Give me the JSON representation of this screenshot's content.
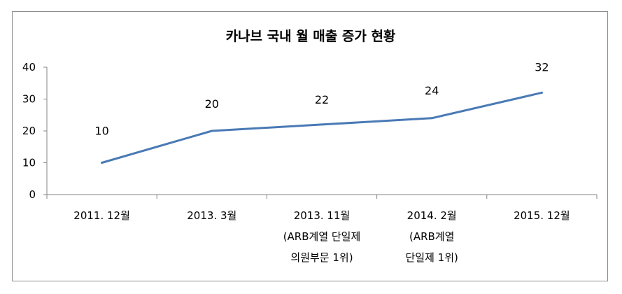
{
  "chart_data": {
    "type": "line",
    "title": "카나브 국내 월 매출 증가 현황",
    "xlabel": "",
    "ylabel": "",
    "ylim": [
      0,
      40
    ],
    "yticks": [
      "0",
      "10",
      "20",
      "30",
      "40"
    ],
    "categories": [
      [
        "2011. 12월"
      ],
      [
        "2013. 3월"
      ],
      [
        "2013. 11월",
        "(ARB계열 단일제",
        "의원부문 1위)"
      ],
      [
        "2014. 2월",
        "(ARB계열",
        "단일제 1위)"
      ],
      [
        "2015. 12월"
      ]
    ],
    "series": [
      {
        "values": [
          10,
          20,
          22,
          24,
          32
        ],
        "color": "#4a7ab5"
      }
    ],
    "data_labels": [
      "10",
      "20",
      "22",
      "24",
      "32"
    ],
    "grid": false,
    "legend": "none"
  }
}
